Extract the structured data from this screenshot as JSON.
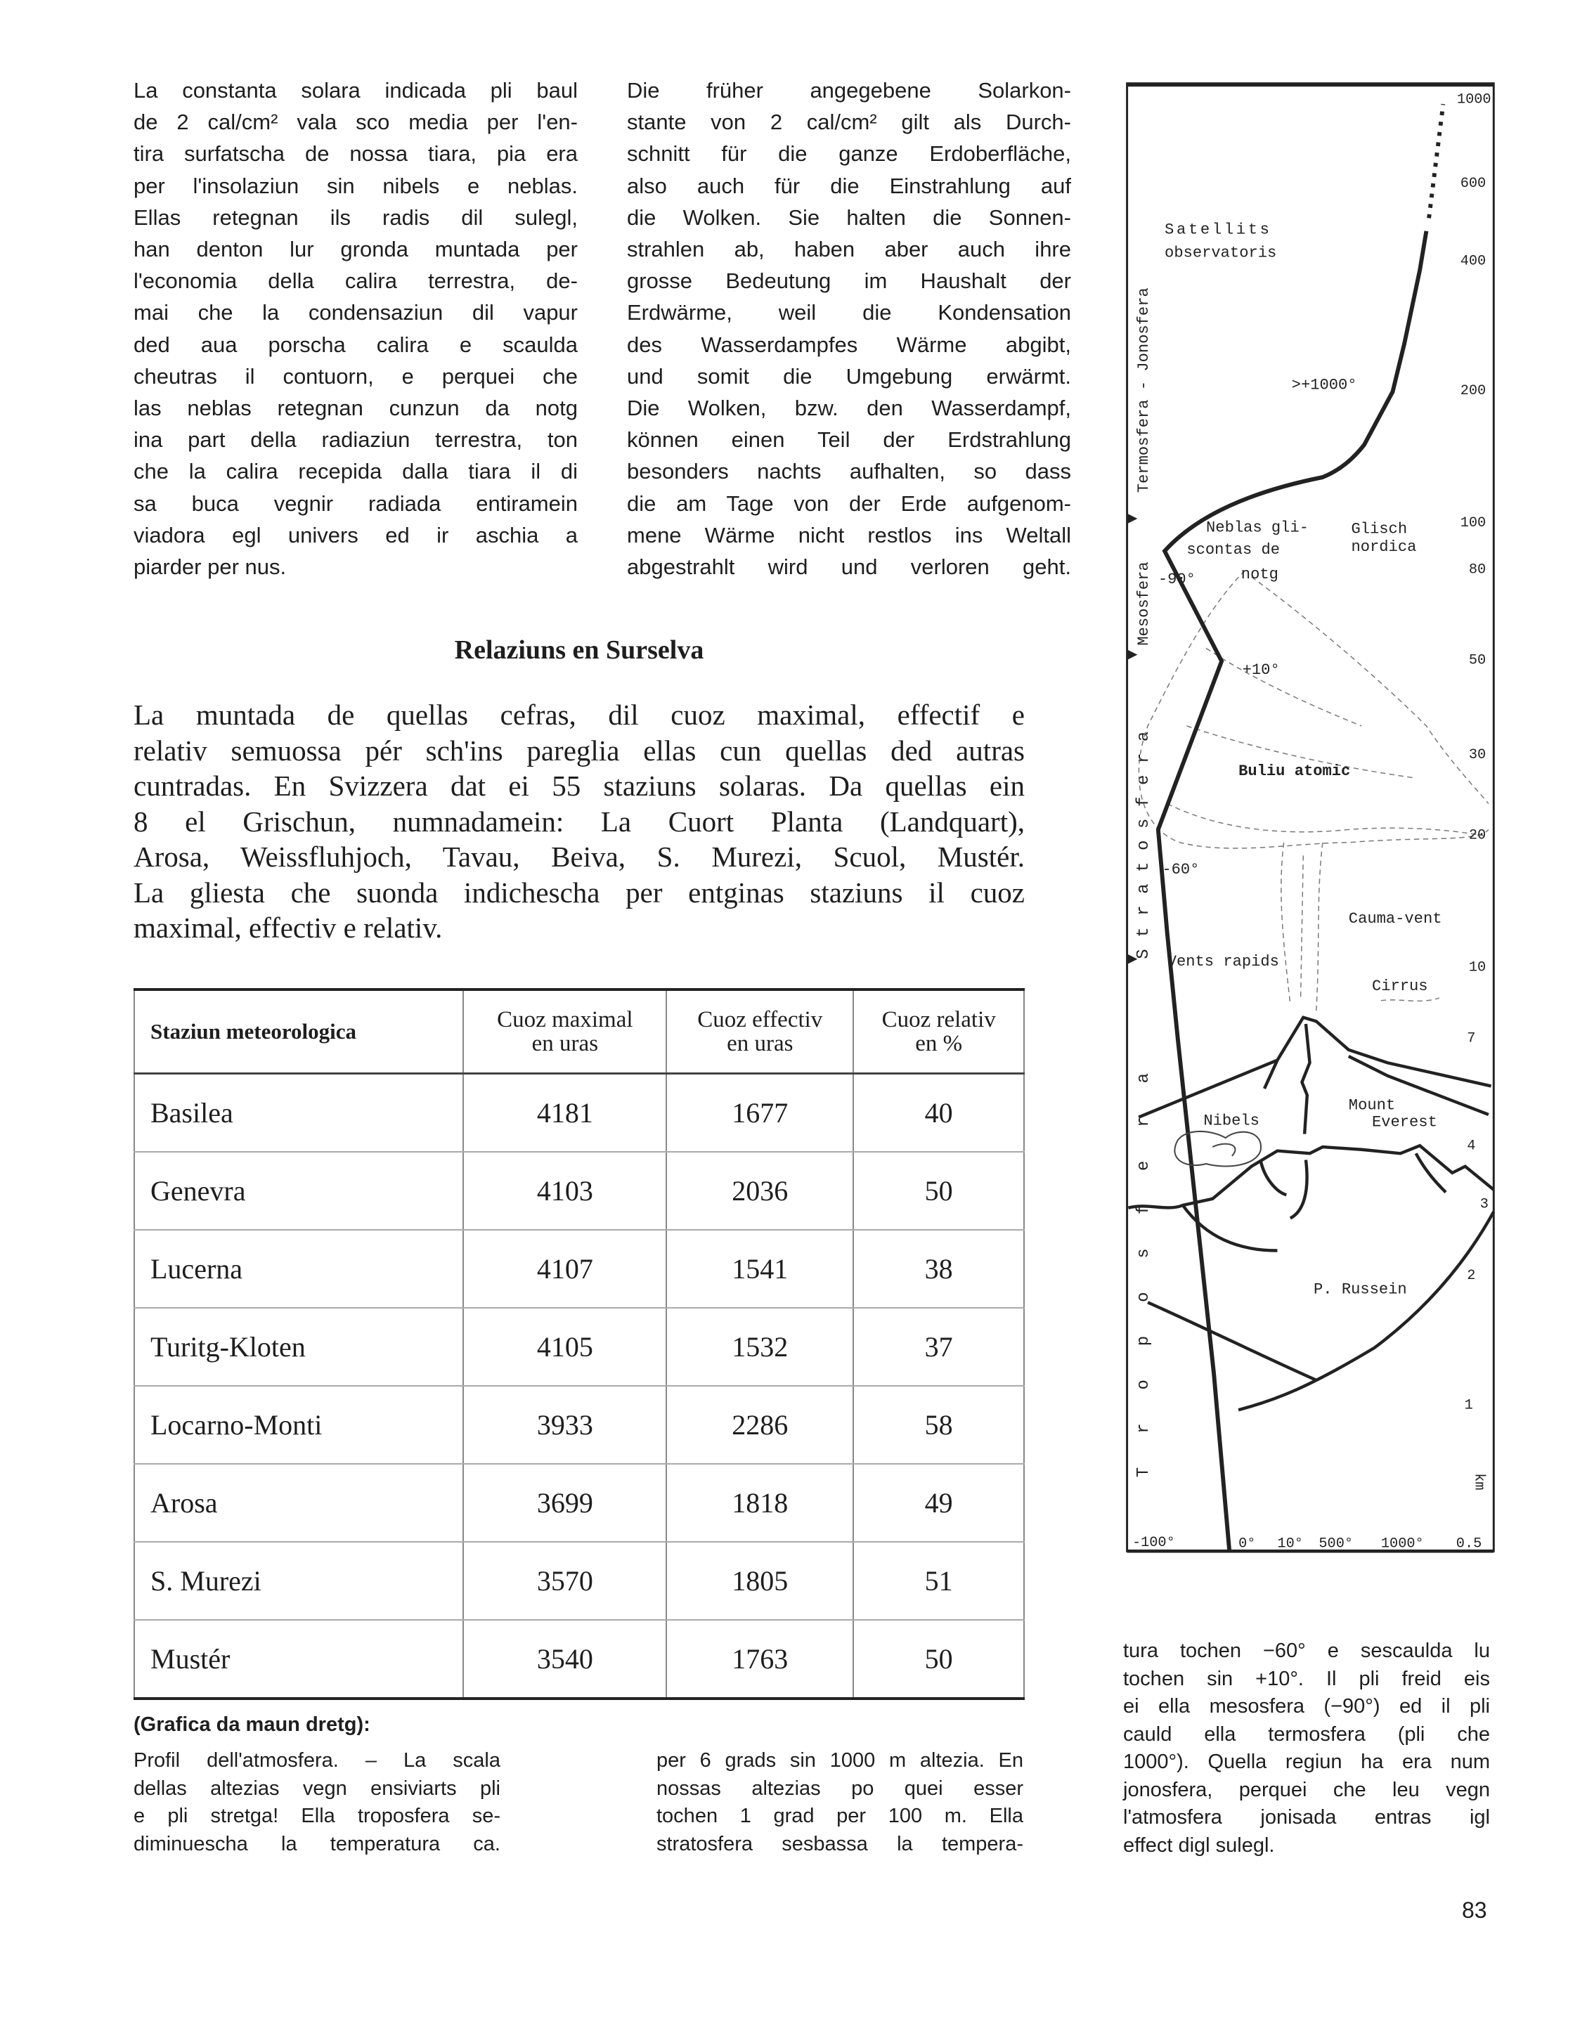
{
  "left_column": [
    "La constanta solara indicada pli baul",
    "de 2 cal/cm² vala sco media per l'en-",
    "tira surfatscha de nossa tiara, pia era",
    "per l'insolaziun sin nibels e neblas.",
    "Ellas retegnan ils radis dil sulegl,",
    "han denton lur gronda muntada per",
    "l'economia della calira terrestra, de-",
    "mai che la condensaziun dil vapur",
    "ded aua porscha calira e scaulda",
    "cheutras il contuorn, e perquei che",
    "las neblas retegnan cunzun da notg",
    "ina part della radiaziun terrestra, ton",
    "che la calira recepida dalla tiara il di",
    "sa buca vegnir radiada entiramein",
    "viadora egl univers ed ir aschia a",
    "piarder per nus."
  ],
  "middle_column": [
    "Die früher angegebene Solarkon-",
    "stante von 2 cal/cm² gilt als Durch-",
    "schnitt für die ganze Erdoberfläche,",
    "also auch für die Einstrahlung auf",
    "die Wolken. Sie halten die Sonnen-",
    "strahlen ab, haben aber auch ihre",
    "grosse Bedeutung im Haushalt der",
    "Erdwärme, weil die Kondensation",
    "des Wasserdampfes Wärme abgibt,",
    "und somit die Umgebung erwärmt.",
    "Die Wolken, bzw. den Wasserdampf,",
    "können einen Teil der Erdstrahlung",
    "besonders nachts aufhalten, so dass",
    "die am Tage von der Erde aufgenom-",
    "mene Wärme nicht restlos ins Weltall",
    "abgestrahlt wird und verloren geht."
  ],
  "section_heading": "Relaziuns en Surselva",
  "section_paragraph": [
    "La muntada de quellas cefras, dil cuoz maximal, effectif e",
    "relativ semuossa pér sch'ins pareglia ellas cun quellas ded autras",
    "cuntradas. En Svizzera dat ei 55 staziuns solaras. Da quellas ein",
    "8 el Grischun, numnadamein: La Cuort Planta (Landquart),",
    "Arosa, Weissfluhjoch, Tavau, Beiva, S. Murezi, Scuol, Mustér.",
    "La gliesta che suonda indichescha per entginas staziuns il cuoz",
    "maximal, effectiv e relativ."
  ],
  "table": {
    "headers": [
      [
        "Staziun meteorologica"
      ],
      [
        "Cuoz maximal",
        "en uras"
      ],
      [
        "Cuoz effectiv",
        "en uras"
      ],
      [
        "Cuoz relativ",
        "en %"
      ]
    ],
    "rows": [
      [
        "Basilea",
        "4181",
        "1677",
        "40"
      ],
      [
        "Genevra",
        "4103",
        "2036",
        "50"
      ],
      [
        "Lucerna",
        "4107",
        "1541",
        "38"
      ],
      [
        "Turitg-Kloten",
        "4105",
        "1532",
        "37"
      ],
      [
        "Locarno-Monti",
        "3933",
        "2286",
        "58"
      ],
      [
        "Arosa",
        "3699",
        "1818",
        "49"
      ],
      [
        "S. Murezi",
        "3570",
        "1805",
        "51"
      ],
      [
        "Mustér",
        "3540",
        "1763",
        "50"
      ]
    ]
  },
  "caption_title": "(Grafica da maun dretg):",
  "caption_col1": [
    "Profil dell'atmosfera. – La scala",
    "dellas altezias vegn ensiviarts pli",
    "e pli stretga! Ella troposfera se-",
    "diminuescha la temperatura ca."
  ],
  "caption_col2": [
    "per 6 grads sin 1000 m altezia. En",
    "nossas altezias po quei esser",
    "tochen 1 grad per 100 m. Ella",
    "stratosfera sesbassa la tempera-"
  ],
  "caption_col3": [
    "tura tochen −60° e sescaulda lu",
    "tochen sin +10°. Il pli freid eis",
    "ei ella mesosfera (−90°) ed il pli",
    "cauld ella termosfera (pli che",
    "1000°). Quella regiun ha era num",
    "jonosfera, perquei che leu vegn",
    "l'atmosfera jonisada entras igl",
    "effect digl sulegl."
  ],
  "page_number": "83",
  "diagram": {
    "layers": [
      "Termosfera - Jonosfera",
      "Mesosfera",
      "Stratosfera",
      "Troposfera"
    ],
    "altitude_ticks": [
      "1000",
      "600",
      "400",
      "200",
      "100",
      "80",
      "50",
      "30",
      "20",
      "10",
      "7",
      "4",
      "3",
      "2",
      "1"
    ],
    "altitude_unit": "km",
    "temperature_ticks": [
      "-100°",
      "0°",
      "10°",
      "500°",
      "1000°",
      "0.5"
    ],
    "labels": {
      "satellits": "Satellits",
      "observatoris": "observatoris",
      "thermo_temp": ">+1000°",
      "neblas1": "Neblas gli-",
      "neblas2": "scontas de",
      "neblas3": "notg",
      "glisch1": "Glisch",
      "glisch2": "nordica",
      "meso_temp": "-90°",
      "strato_top_temp": "+10°",
      "buliu": "Buliu atomic",
      "tropo_top_temp": "-60°",
      "cauma": "Cauma-vent",
      "vents": "Vents rapids",
      "cirrus": "Cirrus",
      "everest1": "Mount",
      "everest2": "Everest",
      "nibels": "Nibels",
      "russein": "P. Russein"
    }
  }
}
